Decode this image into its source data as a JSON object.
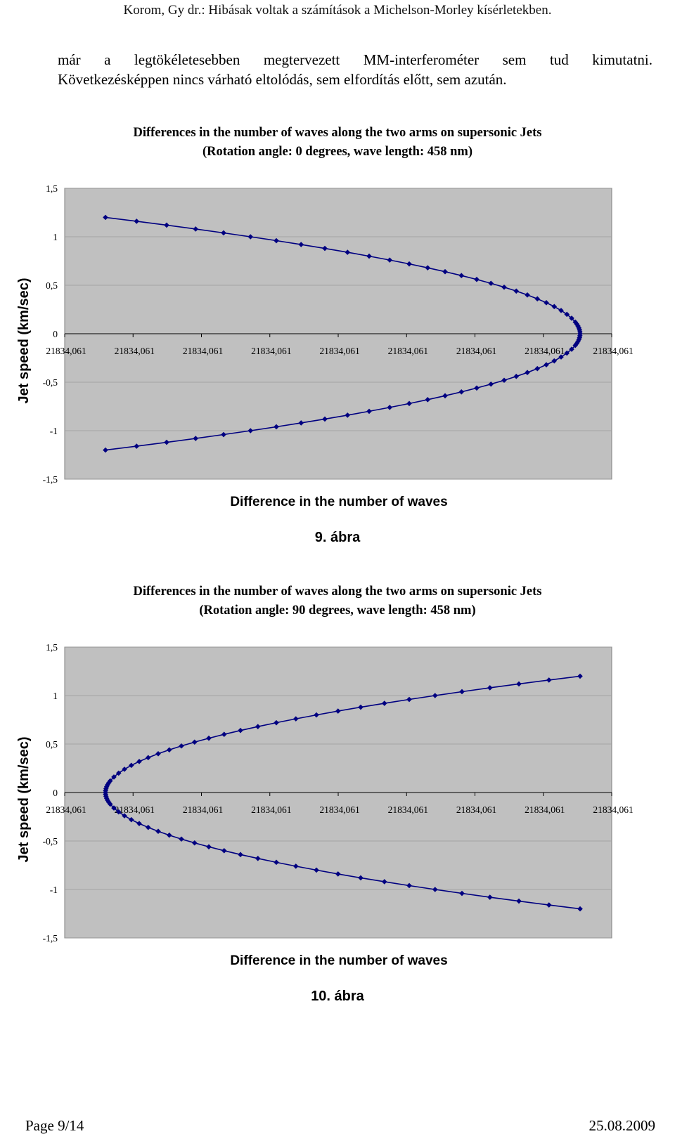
{
  "header": "Korom, Gy dr.: Hibásak voltak a számítások a Michelson-Morley kísérletekben.",
  "paragraph": {
    "line1": "már a legtökéletesebben megtervezett MM-interferométer sem tud kimutatni.",
    "line2": "Következésképpen nincs várható eltolódás, sem elfordítás előtt, sem azután."
  },
  "chart_data": [
    {
      "type": "scatter",
      "title_line1": "Differences in the number of waves along the two arms on supersonic Jets",
      "title_line2": "(Rotation angle: 0 degrees, wave length: 458 nm)",
      "xlabel": "Difference in the number of waves",
      "ylabel": "Jet speed (km/sec)",
      "ylim": [
        -1.5,
        1.5
      ],
      "y_ticks": [
        "1,5",
        "1",
        "0,5",
        "0",
        "-0,5",
        "-1",
        "-1,5"
      ],
      "x_tick_labels": [
        "21834,061",
        "21834,061",
        "21834,061",
        "21834,061",
        "21834,061",
        "21834,061",
        "21834,061",
        "21834,061",
        "21834,061"
      ],
      "orientation": "opens-left",
      "y_values": [
        1.2,
        1.16,
        1.12,
        1.08,
        1.04,
        1.0,
        0.96,
        0.92,
        0.88,
        0.84,
        0.8,
        0.76,
        0.72,
        0.68,
        0.64,
        0.6,
        0.56,
        0.52,
        0.48,
        0.44,
        0.4,
        0.36,
        0.32,
        0.28,
        0.24,
        0.2,
        0.16,
        0.12,
        0.1,
        0.08,
        0.06,
        0.04,
        0.02,
        0.0,
        -0.02,
        -0.04,
        -0.06,
        -0.08,
        -0.1,
        -0.12,
        -0.16,
        -0.2,
        -0.24,
        -0.28,
        -0.32,
        -0.36,
        -0.4,
        -0.44,
        -0.48,
        -0.52,
        -0.56,
        -0.6,
        -0.64,
        -0.68,
        -0.72,
        -0.76,
        -0.8,
        -0.84,
        -0.88,
        -0.92,
        -0.96,
        -1.0,
        -1.04,
        -1.08,
        -1.12,
        -1.16,
        -1.2
      ],
      "caption": "9. ábra",
      "plot_bg": "#c0c0c0",
      "series_color": "#000080"
    },
    {
      "type": "scatter",
      "title_line1": "Differences in the number of waves along the two arms on supersonic Jets",
      "title_line2": "(Rotation angle: 90 degrees, wave length: 458 nm)",
      "xlabel": "Difference in the number of waves",
      "ylabel": "Jet speed (km/sec)",
      "ylim": [
        -1.5,
        1.5
      ],
      "y_ticks": [
        "1,5",
        "1",
        "0,5",
        "0",
        "-0,5",
        "-1",
        "-1,5"
      ],
      "x_tick_labels": [
        "21834,061",
        "21834,061",
        "21834,061",
        "21834,061",
        "21834,061",
        "21834,061",
        "21834,061",
        "21834,061",
        "21834,061"
      ],
      "orientation": "opens-right",
      "y_values": [
        1.2,
        1.16,
        1.12,
        1.08,
        1.04,
        1.0,
        0.96,
        0.92,
        0.88,
        0.84,
        0.8,
        0.76,
        0.72,
        0.68,
        0.64,
        0.6,
        0.56,
        0.52,
        0.48,
        0.44,
        0.4,
        0.36,
        0.32,
        0.28,
        0.24,
        0.2,
        0.16,
        0.12,
        0.1,
        0.08,
        0.06,
        0.04,
        0.02,
        0.0,
        -0.02,
        -0.04,
        -0.06,
        -0.08,
        -0.1,
        -0.12,
        -0.16,
        -0.2,
        -0.24,
        -0.28,
        -0.32,
        -0.36,
        -0.4,
        -0.44,
        -0.48,
        -0.52,
        -0.56,
        -0.6,
        -0.64,
        -0.68,
        -0.72,
        -0.76,
        -0.8,
        -0.84,
        -0.88,
        -0.92,
        -0.96,
        -1.0,
        -1.04,
        -1.08,
        -1.12,
        -1.16,
        -1.2
      ],
      "caption": "10. ábra",
      "plot_bg": "#c0c0c0",
      "series_color": "#000080"
    }
  ],
  "footer": {
    "page": "Page 9/14",
    "date": "25.08.2009"
  }
}
